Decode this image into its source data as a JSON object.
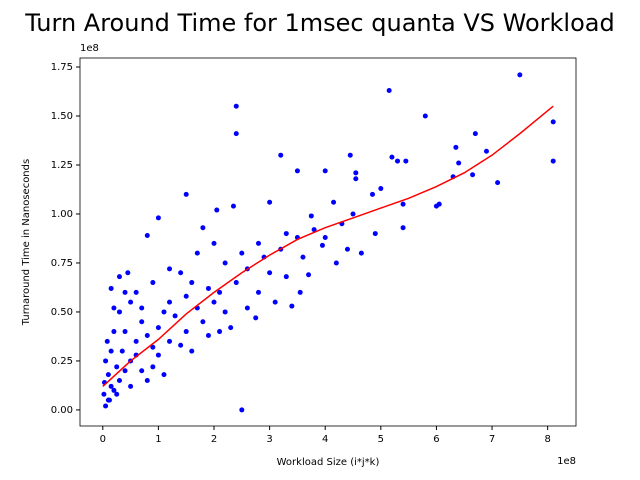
{
  "chart_data": {
    "type": "scatter",
    "title": "Turn Around Time for 1msec quanta VS Workload",
    "x_label": "Workload Size (i*j*k)",
    "y_label": "Turnaround Time in Nanoseconds",
    "x_offset_label": "1e8",
    "y_offset_label": "1e8",
    "xlim": [
      -0.41,
      8.51
    ],
    "ylim": [
      -0.082,
      1.796
    ],
    "xticks": [
      0,
      1,
      2,
      3,
      4,
      5,
      6,
      7,
      8
    ],
    "yticks": [
      {
        "value": 0,
        "label": "0.00"
      },
      {
        "value": 0.25,
        "label": "0.25"
      },
      {
        "value": 0.5,
        "label": "0.50"
      },
      {
        "value": 0.75,
        "label": "0.75"
      },
      {
        "value": 1.0,
        "label": "1.00"
      },
      {
        "value": 1.25,
        "label": "1.25"
      },
      {
        "value": 1.5,
        "label": "1.50"
      },
      {
        "value": 1.75,
        "label": "1.75"
      }
    ],
    "series": [
      {
        "type": "scatter",
        "color": "#0000ff",
        "x": [
          7.5,
          5.15,
          2.4,
          5.8,
          2.4,
          8.1,
          6.7,
          6.35,
          4.45,
          3.2,
          5.2,
          6.9,
          5.3,
          8.1,
          5.45,
          4.0,
          3.5,
          4.55,
          4.55,
          6.4,
          6.65,
          7.1,
          6.3,
          1.5,
          2.5,
          6.05,
          6.0,
          5.4,
          5.0,
          4.85,
          5.4,
          4.9,
          4.65,
          4.4,
          3.55,
          3.7,
          3.4,
          3.1,
          2.75,
          2.6,
          3.95,
          3.75,
          4.15,
          3.0,
          2.35,
          1.0,
          0.8,
          1.8,
          2.05,
          0.05,
          0.1,
          0.02,
          0.15,
          0.2,
          0.3,
          0.1,
          0.25,
          0.4,
          0.5,
          0.35,
          0.6,
          0.15,
          0.05,
          0.2,
          0.3,
          0.15,
          0.3,
          0.45,
          0.5,
          0.7,
          0.8,
          0.9,
          1.0,
          1.1,
          1.2,
          1.3,
          0.7,
          0.9,
          1.0,
          1.2,
          1.4,
          1.5,
          1.6,
          1.8,
          1.9,
          2.0,
          2.2,
          2.1,
          2.3,
          1.2,
          1.4,
          1.6,
          1.7,
          2.0,
          2.2,
          2.4,
          2.5,
          2.6,
          2.8,
          2.9,
          3.0,
          3.2,
          3.3,
          3.5,
          3.6,
          3.8,
          4.0,
          4.3,
          4.5,
          4.2,
          0.6,
          0.9,
          0.5,
          0.6,
          0.08,
          0.03,
          0.12,
          0.25,
          0.4,
          0.7,
          1.5,
          1.7,
          1.9,
          2.1,
          2.8,
          3.3,
          0.4,
          0.2,
          1.1,
          0.8
        ],
        "values": [
          1.71,
          1.63,
          1.55,
          1.5,
          1.41,
          1.47,
          1.41,
          1.34,
          1.3,
          1.3,
          1.29,
          1.32,
          1.27,
          1.27,
          1.27,
          1.22,
          1.22,
          1.21,
          1.18,
          1.26,
          1.2,
          1.16,
          1.19,
          1.1,
          0.0,
          1.05,
          1.04,
          1.05,
          1.13,
          1.1,
          0.93,
          0.9,
          0.8,
          0.82,
          0.6,
          0.69,
          0.53,
          0.55,
          0.47,
          0.52,
          0.84,
          0.99,
          1.06,
          1.06,
          1.04,
          0.98,
          0.89,
          0.93,
          1.02,
          0.02,
          0.05,
          0.08,
          0.12,
          0.1,
          0.15,
          0.18,
          0.22,
          0.2,
          0.25,
          0.3,
          0.28,
          0.3,
          0.25,
          0.4,
          0.5,
          0.62,
          0.68,
          0.7,
          0.55,
          0.45,
          0.38,
          0.32,
          0.42,
          0.5,
          0.55,
          0.48,
          0.2,
          0.22,
          0.28,
          0.35,
          0.33,
          0.4,
          0.3,
          0.45,
          0.38,
          0.55,
          0.5,
          0.6,
          0.42,
          0.72,
          0.7,
          0.65,
          0.8,
          0.85,
          0.75,
          0.65,
          0.8,
          0.72,
          0.85,
          0.78,
          0.7,
          0.82,
          0.9,
          0.88,
          0.78,
          0.92,
          0.88,
          0.95,
          1.0,
          0.75,
          0.6,
          0.65,
          0.12,
          0.35,
          0.35,
          0.14,
          0.05,
          0.08,
          0.4,
          0.52,
          0.58,
          0.52,
          0.62,
          0.4,
          0.6,
          0.68,
          0.6,
          0.52,
          0.18,
          0.15
        ]
      },
      {
        "type": "line",
        "color": "#ff0000",
        "x": [
          0,
          0.5,
          1,
          1.5,
          2,
          2.5,
          3,
          3.5,
          4,
          4.5,
          5,
          5.5,
          6,
          6.5,
          7,
          7.5,
          8.1
        ],
        "values": [
          0.12,
          0.25,
          0.36,
          0.49,
          0.6,
          0.7,
          0.79,
          0.87,
          0.93,
          0.98,
          1.03,
          1.08,
          1.14,
          1.21,
          1.3,
          1.41,
          1.55
        ]
      }
    ]
  }
}
